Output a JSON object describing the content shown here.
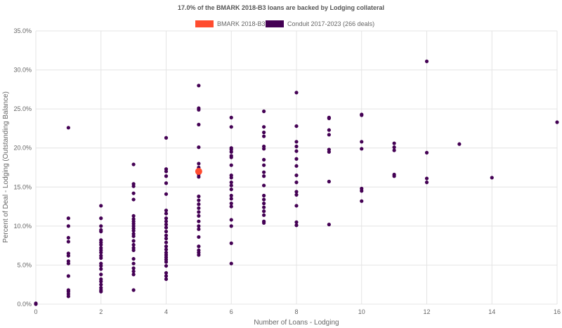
{
  "chart_data": {
    "type": "scatter",
    "title": "17.0% of the BMARK 2018-B3 loans are backed by Lodging collateral",
    "xlabel": "Number of Loans - Lodging",
    "ylabel": "Percent of Deal - Lodging (Outstanding Balance)",
    "xlim": [
      0,
      16
    ],
    "ylim": [
      0,
      35
    ],
    "x_ticks": [
      0,
      2,
      4,
      6,
      8,
      10,
      12,
      14,
      16
    ],
    "y_ticks": [
      0,
      5,
      10,
      15,
      20,
      25,
      30,
      35
    ],
    "x_tick_labels": [
      "0",
      "2",
      "4",
      "6",
      "8",
      "10",
      "12",
      "14",
      "16"
    ],
    "y_tick_labels": [
      "0.0%",
      "5.0%",
      "10.0%",
      "15.0%",
      "20.0%",
      "25.0%",
      "30.0%",
      "35.0%"
    ],
    "grid": true,
    "legend_position": "top-center",
    "series": [
      {
        "name": "BMARK 2018-B3",
        "color": "#ff4c2f",
        "points": [
          [
            5,
            17.0
          ]
        ]
      },
      {
        "name": "Conduit 2017-2023 (266 deals)",
        "color": "#440154",
        "points": [
          [
            0,
            0.0
          ],
          [
            0,
            0.1
          ],
          [
            1,
            22.6
          ],
          [
            1,
            11.0
          ],
          [
            1,
            10.0
          ],
          [
            1,
            8.5
          ],
          [
            1,
            8.0
          ],
          [
            1,
            6.5
          ],
          [
            1,
            6.2
          ],
          [
            1,
            5.5
          ],
          [
            1,
            5.2
          ],
          [
            1,
            3.6
          ],
          [
            1,
            1.8
          ],
          [
            1,
            1.6
          ],
          [
            1,
            1.3
          ],
          [
            1,
            1.0
          ],
          [
            2,
            12.6
          ],
          [
            2,
            11.0
          ],
          [
            2,
            10.0
          ],
          [
            2,
            9.5
          ],
          [
            2,
            9.3
          ],
          [
            2,
            8.2
          ],
          [
            2,
            7.9
          ],
          [
            2,
            7.6
          ],
          [
            2,
            7.2
          ],
          [
            2,
            6.9
          ],
          [
            2,
            6.6
          ],
          [
            2,
            6.2
          ],
          [
            2,
            5.9
          ],
          [
            2,
            5.2
          ],
          [
            2,
            4.9
          ],
          [
            2,
            4.5
          ],
          [
            2,
            3.8
          ],
          [
            2,
            3.2
          ],
          [
            2,
            2.9
          ],
          [
            2,
            2.5
          ],
          [
            2,
            2.1
          ],
          [
            2,
            1.8
          ],
          [
            2,
            1.6
          ],
          [
            3,
            17.9
          ],
          [
            3,
            15.4
          ],
          [
            3,
            15.1
          ],
          [
            3,
            14.2
          ],
          [
            3,
            13.4
          ],
          [
            3,
            11.3
          ],
          [
            3,
            10.9
          ],
          [
            3,
            10.6
          ],
          [
            3,
            10.3
          ],
          [
            3,
            10.0
          ],
          [
            3,
            9.7
          ],
          [
            3,
            9.4
          ],
          [
            3,
            9.0
          ],
          [
            3,
            8.7
          ],
          [
            3,
            8.1
          ],
          [
            3,
            7.6
          ],
          [
            3,
            7.2
          ],
          [
            3,
            6.9
          ],
          [
            3,
            5.8
          ],
          [
            3,
            5.2
          ],
          [
            3,
            4.6
          ],
          [
            3,
            4.2
          ],
          [
            3,
            3.8
          ],
          [
            3,
            1.8
          ],
          [
            4,
            21.3
          ],
          [
            4,
            17.3
          ],
          [
            4,
            17.0
          ],
          [
            4,
            16.4
          ],
          [
            4,
            15.5
          ],
          [
            4,
            14.1
          ],
          [
            4,
            12.0
          ],
          [
            4,
            11.6
          ],
          [
            4,
            11.0
          ],
          [
            4,
            10.6
          ],
          [
            4,
            10.2
          ],
          [
            4,
            9.8
          ],
          [
            4,
            9.3
          ],
          [
            4,
            8.8
          ],
          [
            4,
            8.4
          ],
          [
            4,
            7.9
          ],
          [
            4,
            7.4
          ],
          [
            4,
            7.0
          ],
          [
            4,
            6.6
          ],
          [
            4,
            6.3
          ],
          [
            4,
            6.0
          ],
          [
            4,
            5.7
          ],
          [
            4,
            5.4
          ],
          [
            4,
            4.9
          ],
          [
            4,
            4.0
          ],
          [
            4,
            3.6
          ],
          [
            4,
            3.2
          ],
          [
            5,
            28.0
          ],
          [
            5,
            25.1
          ],
          [
            5,
            24.9
          ],
          [
            5,
            23.0
          ],
          [
            5,
            20.1
          ],
          [
            5,
            18.0
          ],
          [
            5,
            17.5
          ],
          [
            5,
            16.9
          ],
          [
            5,
            16.6
          ],
          [
            5,
            16.3
          ],
          [
            5,
            13.8
          ],
          [
            5,
            13.3
          ],
          [
            5,
            12.8
          ],
          [
            5,
            12.3
          ],
          [
            5,
            11.8
          ],
          [
            5,
            11.3
          ],
          [
            5,
            10.6
          ],
          [
            5,
            10.0
          ],
          [
            5,
            9.6
          ],
          [
            5,
            8.6
          ],
          [
            5,
            7.4
          ],
          [
            5,
            6.9
          ],
          [
            5,
            6.6
          ],
          [
            5,
            6.3
          ],
          [
            6,
            23.9
          ],
          [
            6,
            22.7
          ],
          [
            6,
            20.0
          ],
          [
            6,
            19.8
          ],
          [
            6,
            19.5
          ],
          [
            6,
            19.0
          ],
          [
            6,
            18.8
          ],
          [
            6,
            17.8
          ],
          [
            6,
            16.5
          ],
          [
            6,
            16.2
          ],
          [
            6,
            15.6
          ],
          [
            6,
            15.2
          ],
          [
            6,
            14.7
          ],
          [
            6,
            13.9
          ],
          [
            6,
            13.5
          ],
          [
            6,
            12.9
          ],
          [
            6,
            12.5
          ],
          [
            6,
            10.8
          ],
          [
            6,
            10.0
          ],
          [
            6,
            7.8
          ],
          [
            6,
            5.2
          ],
          [
            7,
            24.7
          ],
          [
            7,
            22.7
          ],
          [
            7,
            22.0
          ],
          [
            7,
            21.5
          ],
          [
            7,
            20.2
          ],
          [
            7,
            19.9
          ],
          [
            7,
            18.5
          ],
          [
            7,
            17.8
          ],
          [
            7,
            16.9
          ],
          [
            7,
            16.4
          ],
          [
            7,
            15.2
          ],
          [
            7,
            13.9
          ],
          [
            7,
            13.4
          ],
          [
            7,
            12.9
          ],
          [
            7,
            12.4
          ],
          [
            7,
            11.9
          ],
          [
            7,
            11.4
          ],
          [
            7,
            10.6
          ],
          [
            7,
            10.4
          ],
          [
            8,
            27.1
          ],
          [
            8,
            22.8
          ],
          [
            8,
            20.8
          ],
          [
            8,
            20.2
          ],
          [
            8,
            19.6
          ],
          [
            8,
            18.6
          ],
          [
            8,
            17.7
          ],
          [
            8,
            16.5
          ],
          [
            8,
            15.6
          ],
          [
            8,
            14.4
          ],
          [
            8,
            14.0
          ],
          [
            8,
            12.6
          ],
          [
            8,
            10.5
          ],
          [
            8,
            10.1
          ],
          [
            9,
            23.9
          ],
          [
            9,
            23.8
          ],
          [
            9,
            22.3
          ],
          [
            9,
            21.7
          ],
          [
            9,
            19.8
          ],
          [
            9,
            19.5
          ],
          [
            9,
            15.7
          ],
          [
            9,
            10.2
          ],
          [
            10,
            24.3
          ],
          [
            10,
            24.2
          ],
          [
            10,
            20.8
          ],
          [
            10,
            19.9
          ],
          [
            10,
            14.8
          ],
          [
            10,
            14.5
          ],
          [
            10,
            13.2
          ],
          [
            11,
            20.6
          ],
          [
            11,
            20.1
          ],
          [
            11,
            19.7
          ],
          [
            11,
            16.6
          ],
          [
            11,
            16.4
          ],
          [
            12,
            31.1
          ],
          [
            12,
            19.4
          ],
          [
            12,
            16.1
          ],
          [
            12,
            15.6
          ],
          [
            13,
            20.5
          ],
          [
            14,
            16.2
          ],
          [
            16,
            23.3
          ]
        ]
      }
    ]
  }
}
